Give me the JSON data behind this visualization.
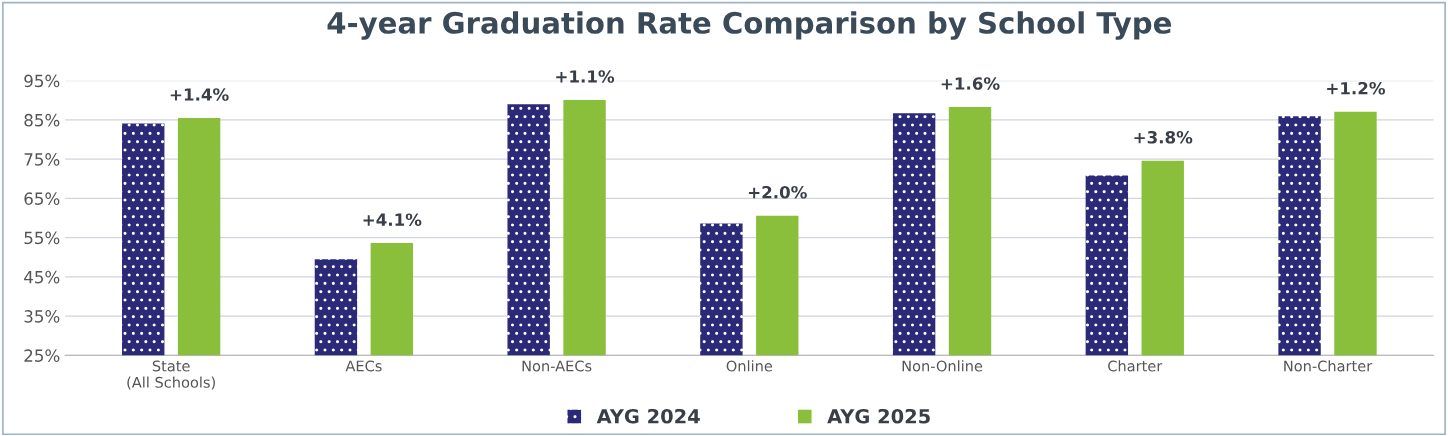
{
  "chart_data": {
    "type": "bar",
    "title": "4-year Graduation Rate Comparison by School Type",
    "categories": [
      "State\n(All Schools)",
      "AECs",
      "Non-AECs",
      "Online",
      "Non-Online",
      "Charter",
      "Non-Charter"
    ],
    "series": [
      {
        "name": "AYG 2024",
        "color": "#2b2a78",
        "values": [
          84.1,
          49.5,
          89.0,
          58.6,
          86.7,
          70.8,
          85.9
        ]
      },
      {
        "name": "AYG 2025",
        "color": "#8abf3c",
        "values": [
          85.5,
          53.6,
          90.1,
          60.6,
          88.3,
          74.6,
          87.1
        ]
      }
    ],
    "annotations": [
      "+1.4%",
      "+4.1%",
      "+1.1%",
      "+2.0%",
      "+1.6%",
      "+3.8%",
      "+1.2%"
    ],
    "ylim": [
      25,
      95
    ],
    "yticks": [
      {
        "value": 25,
        "label": "25%"
      },
      {
        "value": 35,
        "label": "35%"
      },
      {
        "value": 45,
        "label": "45%"
      },
      {
        "value": 55,
        "label": "55%"
      },
      {
        "value": 65,
        "label": "65%"
      },
      {
        "value": 75,
        "label": "75%"
      },
      {
        "value": 85,
        "label": "85%"
      },
      {
        "value": 95,
        "label": "95%"
      }
    ],
    "grid": "y",
    "legend": "bottom"
  }
}
